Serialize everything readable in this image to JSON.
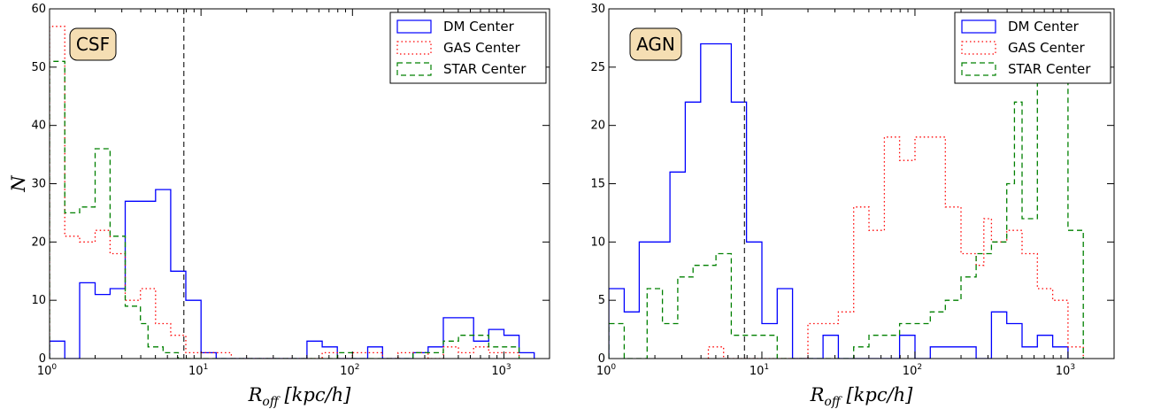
{
  "chart_data": [
    {
      "type": "step-histogram",
      "panel_label": "CSF",
      "xscale": "log",
      "xlim": [
        1,
        2000
      ],
      "ylim": [
        0,
        60
      ],
      "yticks": [
        0,
        10,
        20,
        30,
        40,
        50,
        60
      ],
      "xticks": [
        {
          "value": 1,
          "base": "10",
          "exp": "0"
        },
        {
          "value": 10,
          "base": "10",
          "exp": "1"
        },
        {
          "value": 100,
          "base": "10",
          "exp": "2"
        },
        {
          "value": 1000,
          "base": "10",
          "exp": "3"
        }
      ],
      "xlabel": {
        "main": "R",
        "sub": "off",
        "unit": "[kpc/h]"
      },
      "ylabel": "N",
      "vline": 7.7,
      "legend_position": "top-right",
      "series": [
        {
          "name": "DM Center",
          "color": "#0000ff",
          "dash": "solid",
          "steps": [
            [
              1,
              3
            ],
            [
              1.26,
              0
            ],
            [
              1.58,
              13
            ],
            [
              2,
              11
            ],
            [
              2.51,
              12
            ],
            [
              3.16,
              27
            ],
            [
              5.01,
              29
            ],
            [
              6.31,
              15
            ],
            [
              7.94,
              10
            ],
            [
              10,
              1
            ],
            [
              12.59,
              0
            ],
            [
              50.1,
              3
            ],
            [
              63.1,
              2
            ],
            [
              79.4,
              0
            ],
            [
              126,
              2
            ],
            [
              158,
              0
            ],
            [
              251,
              1
            ],
            [
              316,
              2
            ],
            [
              398,
              7
            ],
            [
              631,
              3
            ],
            [
              794,
              5
            ],
            [
              1000,
              4
            ],
            [
              1259,
              1
            ],
            [
              1585,
              0
            ]
          ]
        },
        {
          "name": "GAS Center",
          "color": "#ff0000",
          "dash": "dotted",
          "steps": [
            [
              1,
              57
            ],
            [
              1.26,
              21
            ],
            [
              1.58,
              20
            ],
            [
              2,
              22
            ],
            [
              2.51,
              18
            ],
            [
              3.16,
              10
            ],
            [
              3.98,
              12
            ],
            [
              5.01,
              6
            ],
            [
              6.31,
              4
            ],
            [
              7.94,
              1
            ],
            [
              15.85,
              0
            ],
            [
              63.1,
              1
            ],
            [
              79.4,
              0
            ],
            [
              100,
              1
            ],
            [
              158,
              0
            ],
            [
              200,
              1
            ],
            [
              316,
              0
            ],
            [
              398,
              2
            ],
            [
              501,
              1
            ],
            [
              631,
              2
            ],
            [
              794,
              1
            ],
            [
              1259,
              0
            ]
          ]
        },
        {
          "name": "STAR Center",
          "color": "#008000",
          "dash": "dashed",
          "steps": [
            [
              1,
              51
            ],
            [
              1.26,
              25
            ],
            [
              1.58,
              26
            ],
            [
              2,
              36
            ],
            [
              2.51,
              21
            ],
            [
              3.16,
              9
            ],
            [
              3.98,
              6
            ],
            [
              4.47,
              2
            ],
            [
              5.62,
              1
            ],
            [
              7.08,
              0
            ],
            [
              79.4,
              1
            ],
            [
              100,
              0
            ],
            [
              251,
              1
            ],
            [
              398,
              3
            ],
            [
              501,
              4
            ],
            [
              794,
              2
            ],
            [
              1259,
              0
            ]
          ]
        }
      ]
    },
    {
      "type": "step-histogram",
      "panel_label": "AGN",
      "xscale": "log",
      "xlim": [
        1,
        2000
      ],
      "ylim": [
        0,
        30
      ],
      "yticks": [
        0,
        5,
        10,
        15,
        20,
        25,
        30
      ],
      "xticks": [
        {
          "value": 1,
          "base": "10",
          "exp": "0"
        },
        {
          "value": 10,
          "base": "10",
          "exp": "1"
        },
        {
          "value": 100,
          "base": "10",
          "exp": "2"
        },
        {
          "value": 1000,
          "base": "10",
          "exp": "3"
        }
      ],
      "xlabel": {
        "main": "R",
        "sub": "off",
        "unit": "[kpc/h]"
      },
      "ylabel": "",
      "vline": 7.7,
      "legend_position": "top-right",
      "series": [
        {
          "name": "DM Center",
          "color": "#0000ff",
          "dash": "solid",
          "steps": [
            [
              1,
              6
            ],
            [
              1.26,
              4
            ],
            [
              1.58,
              10
            ],
            [
              2.51,
              16
            ],
            [
              3.16,
              22
            ],
            [
              3.98,
              27
            ],
            [
              6.31,
              22
            ],
            [
              7.94,
              10
            ],
            [
              10,
              3
            ],
            [
              12.59,
              6
            ],
            [
              15.85,
              0
            ],
            [
              25.1,
              2
            ],
            [
              31.6,
              0
            ],
            [
              79.4,
              2
            ],
            [
              100,
              0
            ],
            [
              126,
              1
            ],
            [
              251,
              0
            ],
            [
              316,
              4
            ],
            [
              398,
              3
            ],
            [
              501,
              1
            ],
            [
              631,
              2
            ],
            [
              794,
              1
            ],
            [
              1000,
              0
            ]
          ]
        },
        {
          "name": "GAS Center",
          "color": "#ff0000",
          "dash": "dotted",
          "steps": [
            [
              4.47,
              1
            ],
            [
              5.62,
              0
            ],
            [
              20,
              3
            ],
            [
              31.6,
              4
            ],
            [
              39.8,
              13
            ],
            [
              50.1,
              11
            ],
            [
              63.1,
              19
            ],
            [
              79.4,
              17
            ],
            [
              100,
              19
            ],
            [
              158,
              13
            ],
            [
              200,
              9
            ],
            [
              251,
              8
            ],
            [
              282,
              12
            ],
            [
              316,
              10
            ],
            [
              398,
              11
            ],
            [
              501,
              9
            ],
            [
              631,
              6
            ],
            [
              794,
              5
            ],
            [
              1000,
              1
            ],
            [
              1259,
              0
            ]
          ]
        },
        {
          "name": "STAR Center",
          "color": "#008000",
          "dash": "dashed",
          "steps": [
            [
              1,
              3
            ],
            [
              1.26,
              0
            ],
            [
              1.78,
              6
            ],
            [
              2.24,
              3
            ],
            [
              2.82,
              7
            ],
            [
              3.55,
              8
            ],
            [
              5.01,
              9
            ],
            [
              6.31,
              2
            ],
            [
              12.59,
              0
            ],
            [
              39.8,
              1
            ],
            [
              50.1,
              2
            ],
            [
              79.4,
              3
            ],
            [
              126,
              4
            ],
            [
              158,
              5
            ],
            [
              200,
              7
            ],
            [
              251,
              9
            ],
            [
              316,
              10
            ],
            [
              398,
              15
            ],
            [
              447,
              22
            ],
            [
              501,
              12
            ],
            [
              631,
              27
            ],
            [
              794,
              28
            ],
            [
              1000,
              11
            ],
            [
              1259,
              0
            ]
          ]
        }
      ]
    }
  ]
}
